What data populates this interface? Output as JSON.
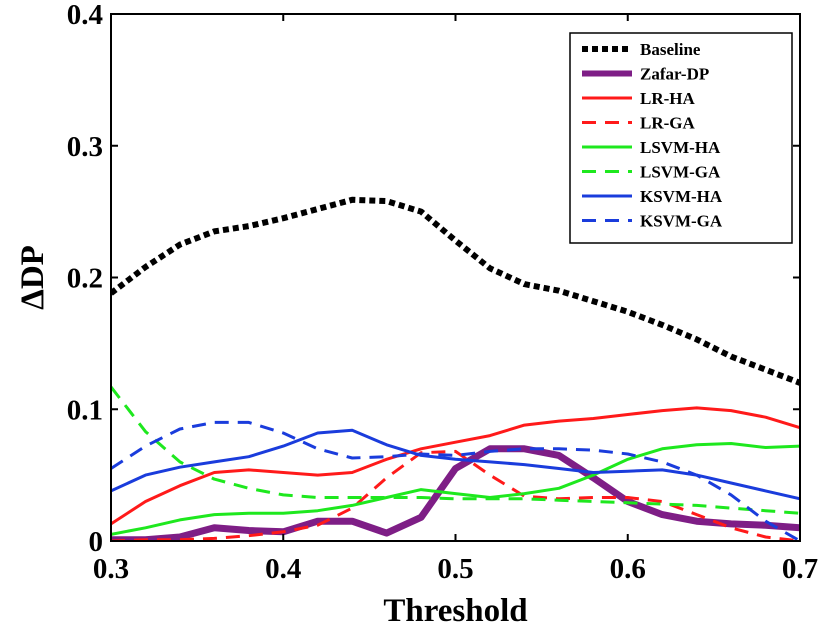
{
  "chart_data": {
    "type": "line",
    "title": "",
    "xlabel": "Threshold",
    "ylabel": "ΔDP",
    "xlim": [
      0.3,
      0.7
    ],
    "ylim": [
      0,
      0.4
    ],
    "xticks": [
      0.3,
      0.4,
      0.5,
      0.6,
      0.7
    ],
    "xtick_labels": [
      "0.3",
      "0.4",
      "0.5",
      "0.6",
      "0.7"
    ],
    "yticks": [
      0,
      0.1,
      0.2,
      0.3,
      0.4
    ],
    "ytick_labels": [
      "0",
      "0.1",
      "0.2",
      "0.3",
      "0.4"
    ],
    "grid": false,
    "legend_position": "top-right",
    "x": [
      0.3,
      0.32,
      0.34,
      0.36,
      0.38,
      0.4,
      0.42,
      0.44,
      0.46,
      0.48,
      0.5,
      0.52,
      0.54,
      0.56,
      0.58,
      0.6,
      0.62,
      0.64,
      0.66,
      0.68,
      0.7
    ],
    "series": [
      {
        "name": "Baseline",
        "color": "#000000",
        "style": "dotted",
        "width": 6,
        "values": [
          0.188,
          0.208,
          0.225,
          0.235,
          0.239,
          0.245,
          0.252,
          0.259,
          0.258,
          0.25,
          0.228,
          0.207,
          0.195,
          0.19,
          0.182,
          0.174,
          0.164,
          0.153,
          0.14,
          0.13,
          0.12
        ]
      },
      {
        "name": "Zafar-DP",
        "color": "#7e1e86",
        "style": "solid",
        "width": 7,
        "values": [
          0.001,
          0.001,
          0.003,
          0.01,
          0.008,
          0.007,
          0.015,
          0.015,
          0.006,
          0.018,
          0.055,
          0.07,
          0.07,
          0.065,
          0.048,
          0.03,
          0.02,
          0.015,
          0.013,
          0.012,
          0.01
        ]
      },
      {
        "name": "LR-HA",
        "color": "#ff1a1a",
        "style": "solid",
        "width": 3,
        "values": [
          0.013,
          0.03,
          0.042,
          0.052,
          0.054,
          0.052,
          0.05,
          0.052,
          0.062,
          0.07,
          0.075,
          0.08,
          0.088,
          0.091,
          0.093,
          0.096,
          0.099,
          0.101,
          0.099,
          0.094,
          0.086
        ]
      },
      {
        "name": "LR-GA",
        "color": "#ff1a1a",
        "style": "dashed",
        "width": 3,
        "values": [
          0.0,
          0.001,
          0.001,
          0.002,
          0.004,
          0.007,
          0.012,
          0.025,
          0.048,
          0.067,
          0.068,
          0.05,
          0.034,
          0.032,
          0.033,
          0.033,
          0.03,
          0.02,
          0.01,
          0.003,
          0.0
        ]
      },
      {
        "name": "LSVM-HA",
        "color": "#1ee81e",
        "style": "solid",
        "width": 3,
        "values": [
          0.005,
          0.01,
          0.016,
          0.02,
          0.021,
          0.021,
          0.023,
          0.027,
          0.033,
          0.039,
          0.036,
          0.033,
          0.036,
          0.04,
          0.05,
          0.062,
          0.07,
          0.073,
          0.074,
          0.071,
          0.072
        ]
      },
      {
        "name": "LSVM-GA",
        "color": "#1ee81e",
        "style": "dashed",
        "width": 3,
        "values": [
          0.117,
          0.083,
          0.06,
          0.047,
          0.04,
          0.035,
          0.033,
          0.033,
          0.033,
          0.033,
          0.032,
          0.032,
          0.032,
          0.031,
          0.03,
          0.029,
          0.028,
          0.027,
          0.025,
          0.023,
          0.021
        ]
      },
      {
        "name": "KSVM-HA",
        "color": "#1a3cdc",
        "style": "solid",
        "width": 3,
        "values": [
          0.038,
          0.05,
          0.056,
          0.06,
          0.064,
          0.072,
          0.082,
          0.084,
          0.073,
          0.065,
          0.062,
          0.06,
          0.058,
          0.055,
          0.052,
          0.053,
          0.054,
          0.05,
          0.044,
          0.038,
          0.032
        ]
      },
      {
        "name": "KSVM-GA",
        "color": "#1a3cdc",
        "style": "dashed",
        "width": 3,
        "values": [
          0.055,
          0.072,
          0.085,
          0.09,
          0.09,
          0.082,
          0.07,
          0.063,
          0.064,
          0.066,
          0.065,
          0.068,
          0.07,
          0.07,
          0.069,
          0.066,
          0.06,
          0.05,
          0.035,
          0.015,
          0.0
        ]
      }
    ]
  }
}
